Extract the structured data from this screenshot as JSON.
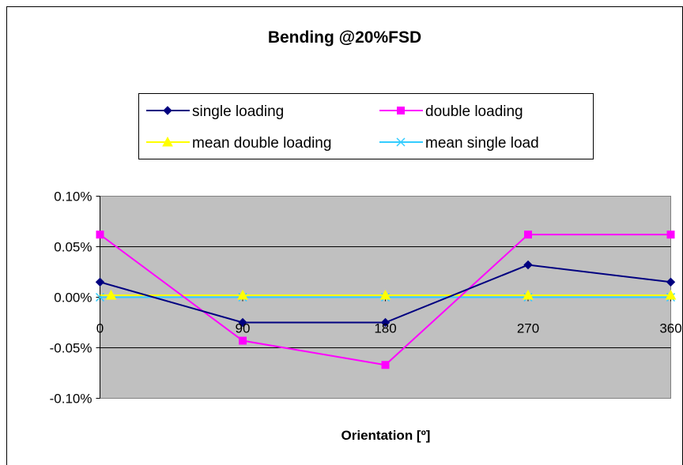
{
  "chart_data": {
    "type": "line",
    "title": "Bending @20%FSD",
    "xlabel": "Orientation [º]",
    "ylabel": "",
    "x": [
      0,
      90,
      180,
      270,
      360
    ],
    "x_tick_labels": [
      "0",
      "90",
      "180",
      "270",
      "360"
    ],
    "xlim": [
      0,
      360
    ],
    "ylim": [
      -0.1,
      0.1
    ],
    "y_tick_labels": [
      "0.10%",
      "0.05%",
      "0.00%",
      "-0.05%",
      "-0.10%"
    ],
    "y_ticks": [
      0.1,
      0.05,
      0.0,
      -0.05,
      -0.1
    ],
    "grid": "horizontal",
    "legend_position": "top",
    "plot_background": "#c0c0c0",
    "series": [
      {
        "name": "single loading",
        "values": [
          0.015,
          -0.025,
          -0.025,
          0.032,
          0.015
        ],
        "color": "#000080",
        "marker": "diamond"
      },
      {
        "name": "double loading",
        "values": [
          0.062,
          -0.043,
          -0.067,
          0.062,
          0.062
        ],
        "color": "#ff00ff",
        "marker": "square"
      },
      {
        "name": "mean double loading",
        "values": [
          0.002,
          0.002,
          0.002,
          0.002,
          0.002
        ],
        "color": "#ffff00",
        "marker": "triangle"
      },
      {
        "name": "mean single load",
        "values": [
          0.0,
          0.0,
          0.0,
          0.0,
          0.0
        ],
        "color": "#33ccff",
        "marker": "x"
      }
    ]
  }
}
